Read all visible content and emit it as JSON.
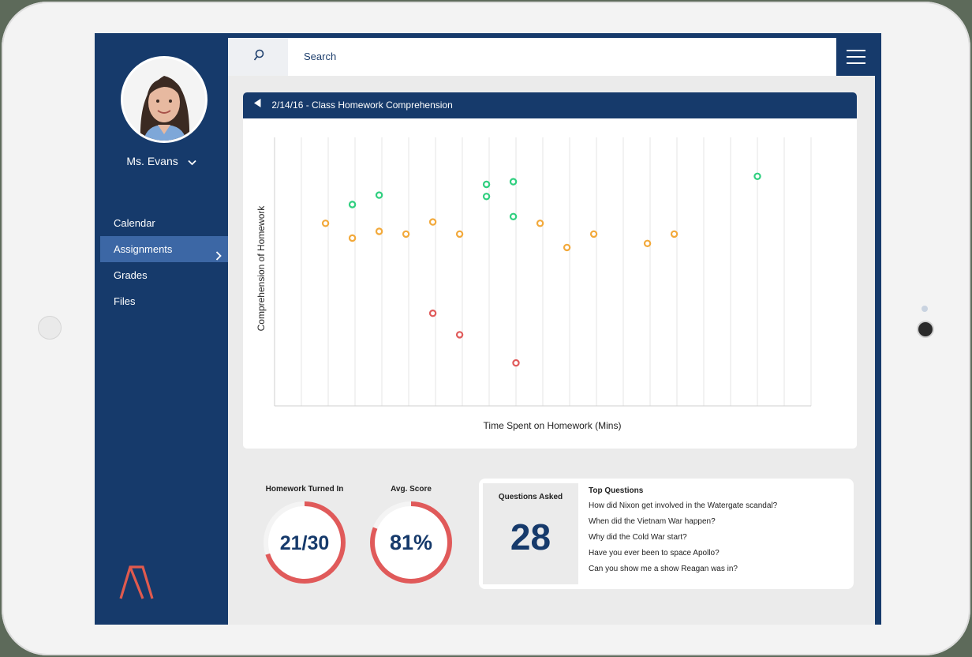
{
  "user": {
    "name": "Ms. Evans"
  },
  "sidebar": {
    "items": [
      {
        "label": "Calendar",
        "active": false
      },
      {
        "label": "Assignments",
        "active": true
      },
      {
        "label": "Grades",
        "active": false
      },
      {
        "label": "Files",
        "active": false
      }
    ]
  },
  "search": {
    "placeholder": "Search"
  },
  "chart_header": {
    "title": "2/14/16 - Class Homework Comprehension"
  },
  "colors": {
    "navy": "#163a6b",
    "active_nav": "#3c67a5",
    "good": "#2fcf7f",
    "medium": "#f2a93b",
    "poor": "#e05a5a",
    "ring": "#e05a5a"
  },
  "chart_data": {
    "type": "scatter",
    "title": "",
    "xlabel": "Time Spent on Homework (Mins)",
    "ylabel": "Comprehension of Homework",
    "xlim": [
      0,
      20
    ],
    "ylim": [
      0,
      100
    ],
    "grid": "vertical",
    "series": [
      {
        "color": "#2fcf7f",
        "points": [
          [
            2.9,
            75
          ],
          [
            3.9,
            78.5
          ],
          [
            7.9,
            82.5
          ],
          [
            7.9,
            78
          ],
          [
            8.9,
            83.5
          ],
          [
            8.9,
            70.5
          ],
          [
            18.0,
            85.5
          ]
        ]
      },
      {
        "color": "#f2a93b",
        "points": [
          [
            1.9,
            68
          ],
          [
            2.9,
            62.5
          ],
          [
            3.9,
            65
          ],
          [
            4.9,
            64
          ],
          [
            5.9,
            68.5
          ],
          [
            6.9,
            64
          ],
          [
            9.9,
            68
          ],
          [
            10.9,
            59
          ],
          [
            11.9,
            64
          ],
          [
            13.9,
            60.5
          ],
          [
            14.9,
            64
          ]
        ]
      },
      {
        "color": "#e05a5a",
        "points": [
          [
            5.9,
            34.5
          ],
          [
            6.9,
            26.5
          ],
          [
            9.0,
            16
          ]
        ]
      }
    ]
  },
  "stats": {
    "homework": {
      "label": "Homework Turned In",
      "value": "21/30",
      "fraction": 0.7
    },
    "score": {
      "label": "Avg. Score",
      "value": "81%",
      "fraction": 0.81
    }
  },
  "questions": {
    "count_label": "Questions Asked",
    "count": "28",
    "top_title": "Top Questions",
    "items": [
      "How did Nixon get involved in the Watergate scandal?",
      "When did the Vietnam War happen?",
      "Why did the Cold War start?",
      "Have you ever been to space Apollo?",
      "Can you show me a show Reagan was in?"
    ]
  }
}
